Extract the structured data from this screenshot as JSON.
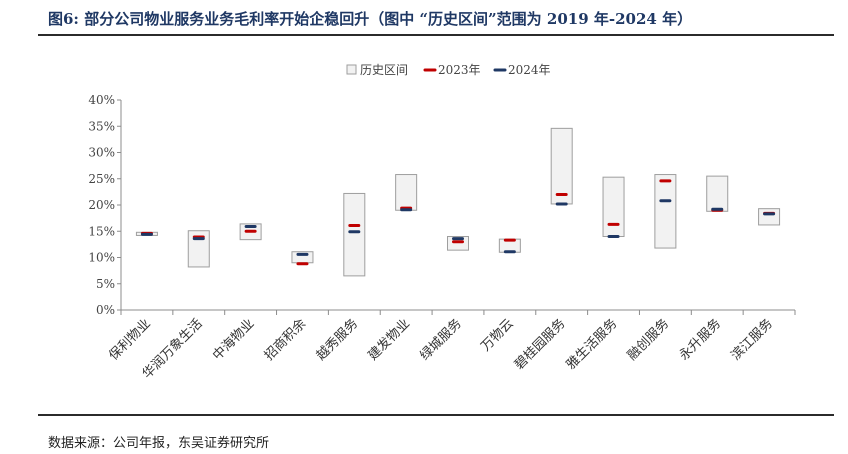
{
  "figure_title": "图6:  部分公司物业服务业务毛利率开始企稳回升（图中 “历史区间”范围为 2019 年-2024 年）",
  "source_note": "数据来源：公司年报，东吴证券研究所",
  "chart_data": {
    "type": "floating-bar-with-markers",
    "legend": {
      "position": "top-center",
      "entries": [
        "历史区间",
        "2023年",
        "2024年"
      ]
    },
    "categories": [
      "保利物业",
      "华润万象生活",
      "中海物业",
      "招商积余",
      "越秀服务",
      "建发物业",
      "绿城服务",
      "万物云",
      "碧桂园服务",
      "雅生活服务",
      "融创服务",
      "永升服务",
      "滨江服务"
    ],
    "y_ticks": [
      "0%",
      "5%",
      "10%",
      "15%",
      "20%",
      "25%",
      "30%",
      "35%",
      "40%"
    ],
    "ylim": [
      0,
      40
    ],
    "series": [
      {
        "name": "历史区间",
        "kind": "range",
        "color": "#f2f2f2",
        "border": "#9e9e9e",
        "low": [
          14.2,
          8.2,
          13.4,
          9.0,
          6.5,
          19.0,
          11.4,
          11.0,
          20.2,
          14.0,
          11.8,
          18.8,
          16.2
        ],
        "high": [
          14.8,
          15.1,
          16.4,
          11.1,
          22.2,
          25.8,
          14.0,
          13.5,
          34.6,
          25.3,
          25.8,
          25.5,
          19.3
        ]
      },
      {
        "name": "2023年",
        "kind": "marker",
        "color": "#c00000",
        "values": [
          14.6,
          13.9,
          15.0,
          8.8,
          16.1,
          19.4,
          13.0,
          13.3,
          22.0,
          16.3,
          24.6,
          19.0,
          18.4
        ]
      },
      {
        "name": "2024年",
        "kind": "marker",
        "color": "#1f3864",
        "values": [
          14.4,
          13.6,
          15.9,
          10.6,
          14.9,
          19.1,
          13.6,
          11.1,
          20.2,
          14.0,
          20.8,
          19.2,
          18.3
        ]
      }
    ]
  }
}
